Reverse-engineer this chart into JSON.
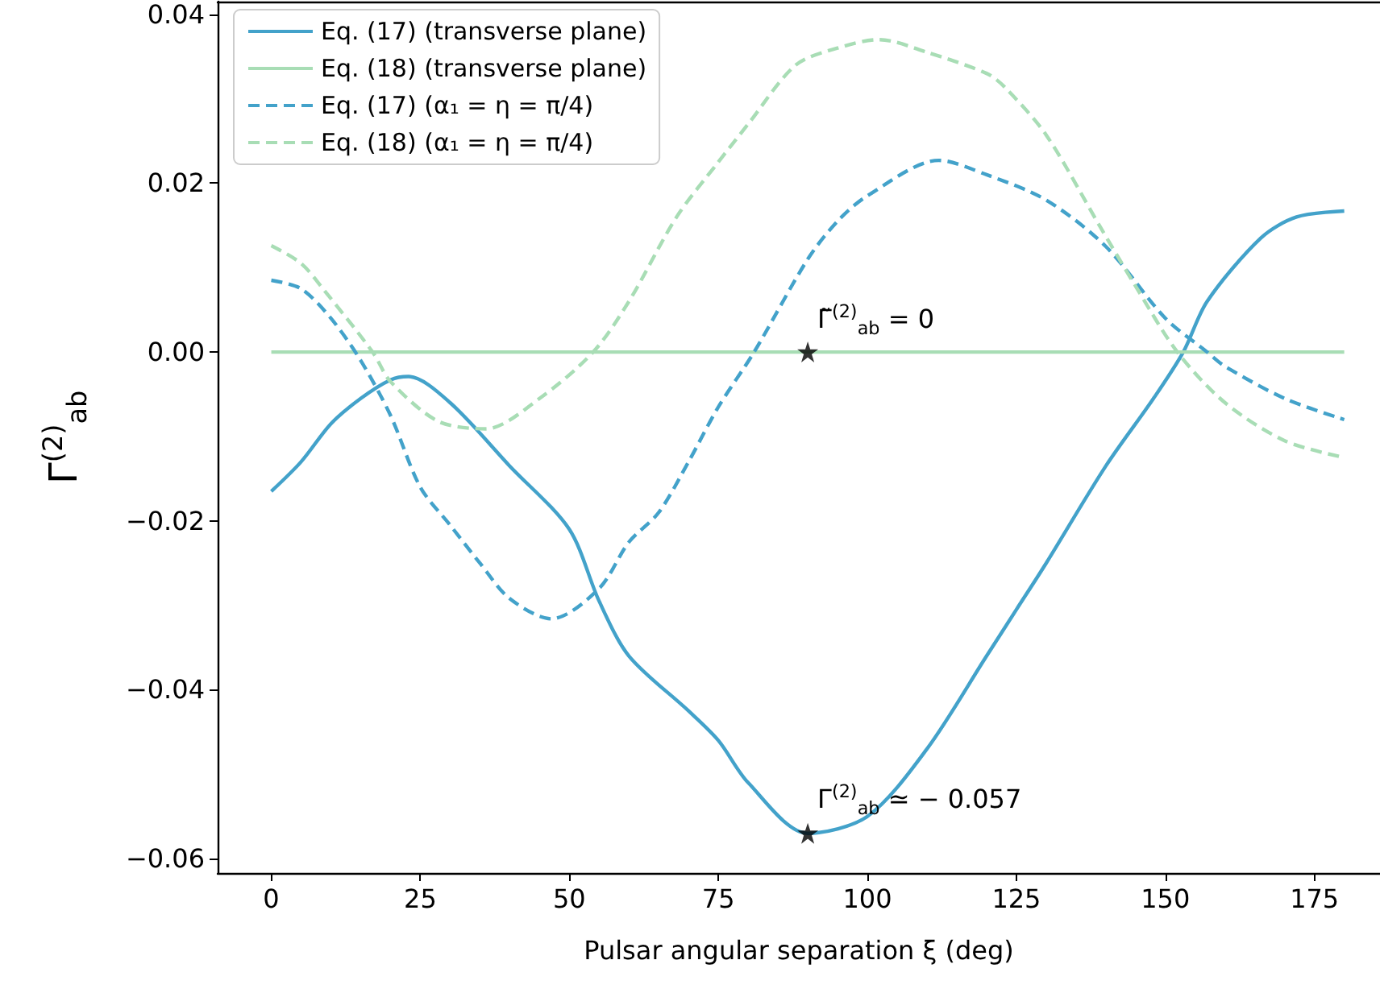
{
  "chart_data": {
    "type": "line",
    "xlabel": "Pulsar angular separation ξ (deg)",
    "ylabel": "Γ$^{(2)}$$_{ab}$",
    "xlim": [
      -9,
      186
    ],
    "xticks": [
      0,
      25,
      50,
      75,
      100,
      125,
      150,
      175
    ],
    "ylim": [
      -0.0617,
      0.0415
    ],
    "yticks": [
      {
        "value": -0.06,
        "label": "−0.06"
      },
      {
        "value": -0.04,
        "label": "−0.04"
      },
      {
        "value": -0.02,
        "label": "−0.02"
      },
      {
        "value": 0,
        "label": "0.00"
      },
      {
        "value": 0.02,
        "label": "0.02"
      },
      {
        "value": 0.04,
        "label": "0.04"
      }
    ],
    "grid": false,
    "legend": "top left",
    "series": [
      {
        "name": "Eq. (17) (transverse plane)",
        "color": "#43a2ca",
        "line_style": "solid",
        "x": [
          0,
          5,
          10,
          15,
          20,
          23,
          30,
          40,
          50,
          55,
          60,
          70,
          75,
          80,
          90,
          100,
          110,
          120,
          125,
          130,
          140,
          148,
          153,
          157,
          166,
          172,
          180
        ],
        "values": [
          -0.0165,
          -0.013,
          -0.0085,
          -0.0055,
          -0.0033,
          -0.0029,
          -0.006,
          -0.0135,
          -0.021,
          -0.0295,
          -0.036,
          -0.0425,
          -0.046,
          -0.051,
          -0.057,
          -0.055,
          -0.047,
          -0.036,
          -0.0305,
          -0.025,
          -0.0135,
          -0.0055,
          0.0,
          0.006,
          0.0135,
          0.016,
          0.0167
        ]
      },
      {
        "name": "Eq. (18) (transverse plane)",
        "color": "#a8ddb5",
        "line_style": "solid",
        "x": [
          0,
          180
        ],
        "values": [
          0,
          0
        ]
      },
      {
        "name": "Eq. (17) (α₁ = η = π/4)",
        "color": "#43a2ca",
        "line_style": "dashed",
        "x": [
          0,
          5,
          10,
          15,
          20,
          25,
          30,
          35,
          40,
          47,
          55,
          60,
          65,
          70,
          75,
          81,
          90,
          95,
          100,
          112,
          120,
          130,
          140,
          150,
          157,
          160,
          170,
          180
        ],
        "values": [
          0.0085,
          0.0075,
          0.004,
          -0.001,
          -0.0075,
          -0.016,
          -0.0205,
          -0.025,
          -0.0292,
          -0.0316,
          -0.028,
          -0.0225,
          -0.019,
          -0.013,
          -0.0065,
          0.0,
          0.011,
          0.0155,
          0.0185,
          0.0227,
          0.021,
          0.018,
          0.0125,
          0.004,
          0.0,
          -0.0017,
          -0.0055,
          -0.008
        ]
      },
      {
        "name": "Eq. (18) (α₁ = η = π/4)",
        "color": "#a8ddb5",
        "line_style": "dashed",
        "x": [
          0,
          5,
          9,
          17,
          20,
          28,
          36,
          45,
          54,
          60,
          68,
          75,
          80,
          88,
          95,
          102,
          110,
          120,
          123,
          130,
          139,
          145,
          152,
          160,
          170,
          180
        ],
        "values": [
          0.0126,
          0.0105,
          0.0072,
          0.0,
          -0.0035,
          -0.0082,
          -0.0091,
          -0.0055,
          0.0,
          0.006,
          0.016,
          0.0225,
          0.027,
          0.034,
          0.036,
          0.037,
          0.0355,
          0.033,
          0.0314,
          0.0257,
          0.0149,
          0.0078,
          0.0,
          -0.006,
          -0.0105,
          -0.0125
        ]
      },
      {
        "type": "scatter",
        "color": "#000000",
        "marker": "star",
        "x": [
          90,
          90
        ],
        "values": [
          0,
          -0.057
        ]
      }
    ],
    "annotations": [
      {
        "text": "Γ̃$^{(2)}$$_{ab}$ = 0",
        "x": 90,
        "y": 0
      },
      {
        "text": "Γ$^{(2)}$$_{ab}$ ≃ − 0.057",
        "x": 90,
        "y": -0.057
      }
    ]
  }
}
